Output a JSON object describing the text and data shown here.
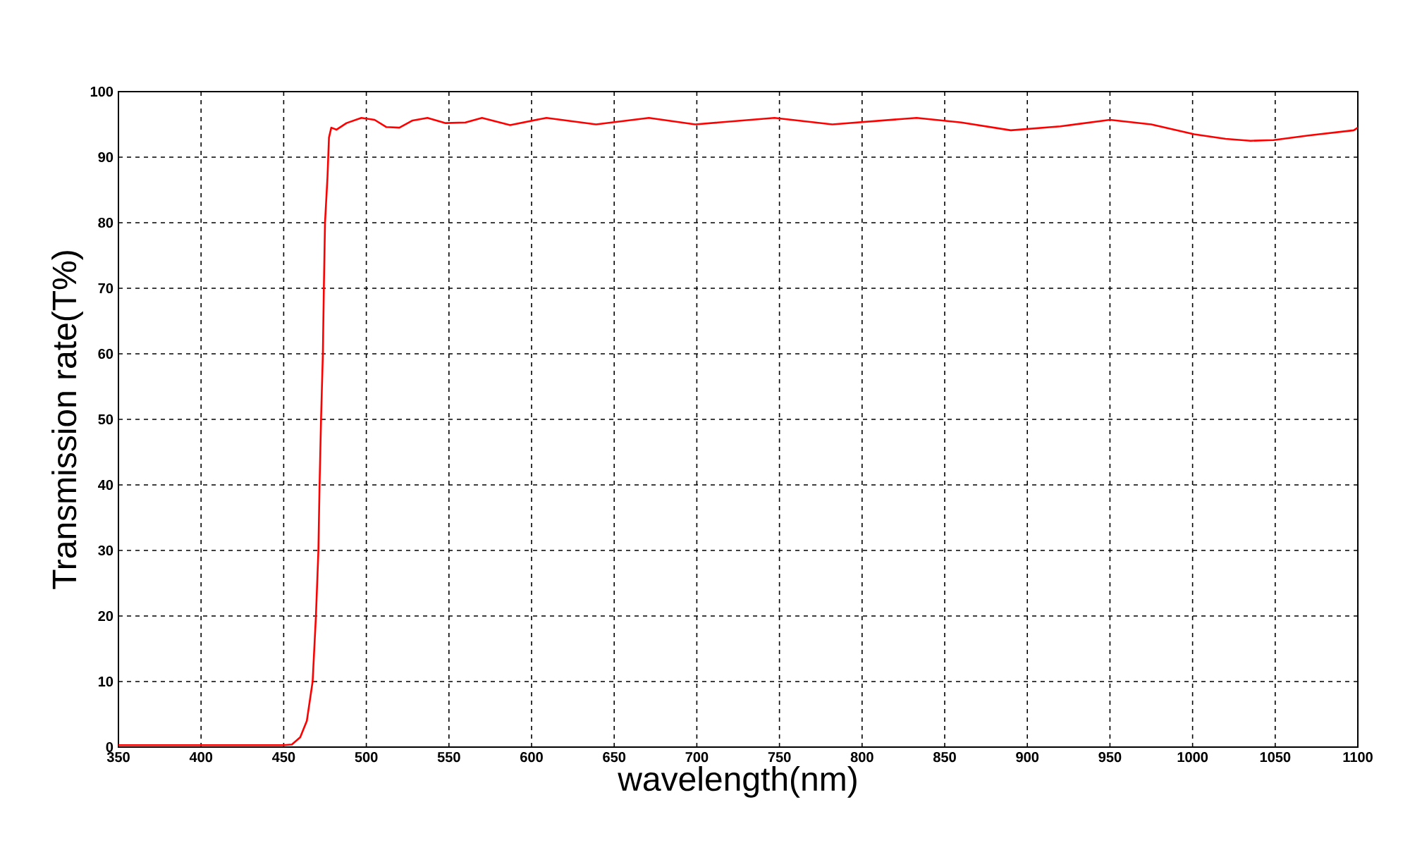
{
  "chart_data": {
    "type": "line",
    "xlabel": "wavelength(nm)",
    "ylabel": "Transmission rate(T%)",
    "x": [
      350,
      400,
      450,
      455,
      460,
      464,
      467.5,
      469.5,
      471,
      471.7,
      472.6,
      473.7,
      474.3,
      475,
      476.5,
      477.4,
      478.8,
      482,
      488,
      497,
      505,
      512,
      520,
      528,
      537,
      548,
      560,
      570,
      587,
      609,
      639,
      671,
      699,
      747,
      782,
      833,
      860,
      890,
      920,
      950,
      975,
      1001,
      1020,
      1035,
      1049,
      1070,
      1097.5,
      1100
    ],
    "series": [
      {
        "color": "#ff0000",
        "values": [
          0.3,
          0.3,
          0.3,
          0.4,
          1.5,
          4,
          10,
          20,
          30,
          40,
          50,
          60,
          70,
          80,
          87,
          93,
          94.5,
          94.2,
          95.2,
          96,
          95.7,
          94.6,
          94.5,
          95.6,
          96,
          95.2,
          95.3,
          96,
          94.9,
          96,
          95,
          96,
          95,
          96,
          95,
          96,
          95.3,
          94.1,
          94.7,
          95.7,
          95,
          93.5,
          92.8,
          92.5,
          92.6,
          93.3,
          94.1,
          94.5
        ]
      }
    ],
    "xlim": [
      350,
      1100
    ],
    "ylim": [
      0,
      100
    ],
    "xticks": [
      350,
      400,
      450,
      500,
      550,
      600,
      650,
      700,
      750,
      800,
      850,
      900,
      950,
      1000,
      1050,
      1100
    ],
    "yticks": [
      0,
      10,
      20,
      30,
      40,
      50,
      60,
      70,
      80,
      90,
      100
    ],
    "grid": true,
    "marker": "none",
    "line_style": "solid"
  }
}
